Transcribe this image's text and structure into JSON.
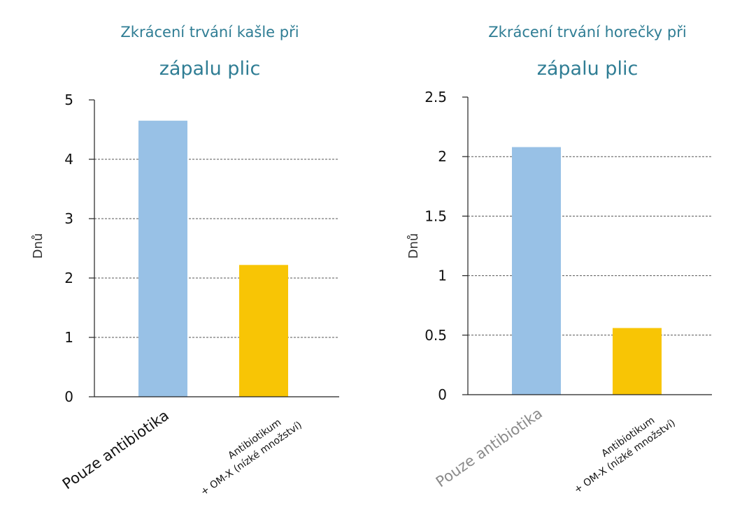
{
  "chart_data": [
    {
      "type": "bar",
      "title_line1": "Zkrácení trvání kašle při",
      "title_line2": "zápalu plic",
      "ylabel": "Dnů",
      "ylim": [
        0,
        5
      ],
      "yticks": [
        "0",
        "1",
        "2",
        "3",
        "4",
        "5"
      ],
      "ytick_values": [
        0,
        1,
        2,
        3,
        4,
        5
      ],
      "grid": true,
      "categories": [
        {
          "lines": [
            "Pouze antibiotika"
          ]
        },
        {
          "lines": [
            "Antibiotikum",
            "+ OM-X (nízké množství)"
          ]
        }
      ],
      "values": [
        4.65,
        2.22
      ],
      "colors": [
        "#98c1e6",
        "#f8c505"
      ]
    },
    {
      "type": "bar",
      "title_line1": "Zkrácení trvání horečky při",
      "title_line2": "zápalu plic",
      "ylabel": "Dnů",
      "ylim": [
        0,
        2.5
      ],
      "yticks": [
        "0",
        "0.5",
        "1",
        "1.5",
        "2",
        "2.5"
      ],
      "ytick_values": [
        0,
        0.5,
        1,
        1.5,
        2,
        2.5
      ],
      "grid": true,
      "categories": [
        {
          "lines": [
            "Pouze antibiotika"
          ]
        },
        {
          "lines": [
            "Antibiotikum",
            "+ OM-X (nízké množství)"
          ]
        }
      ],
      "values": [
        2.08,
        0.56
      ],
      "colors": [
        "#98c1e6",
        "#f8c505"
      ]
    }
  ]
}
